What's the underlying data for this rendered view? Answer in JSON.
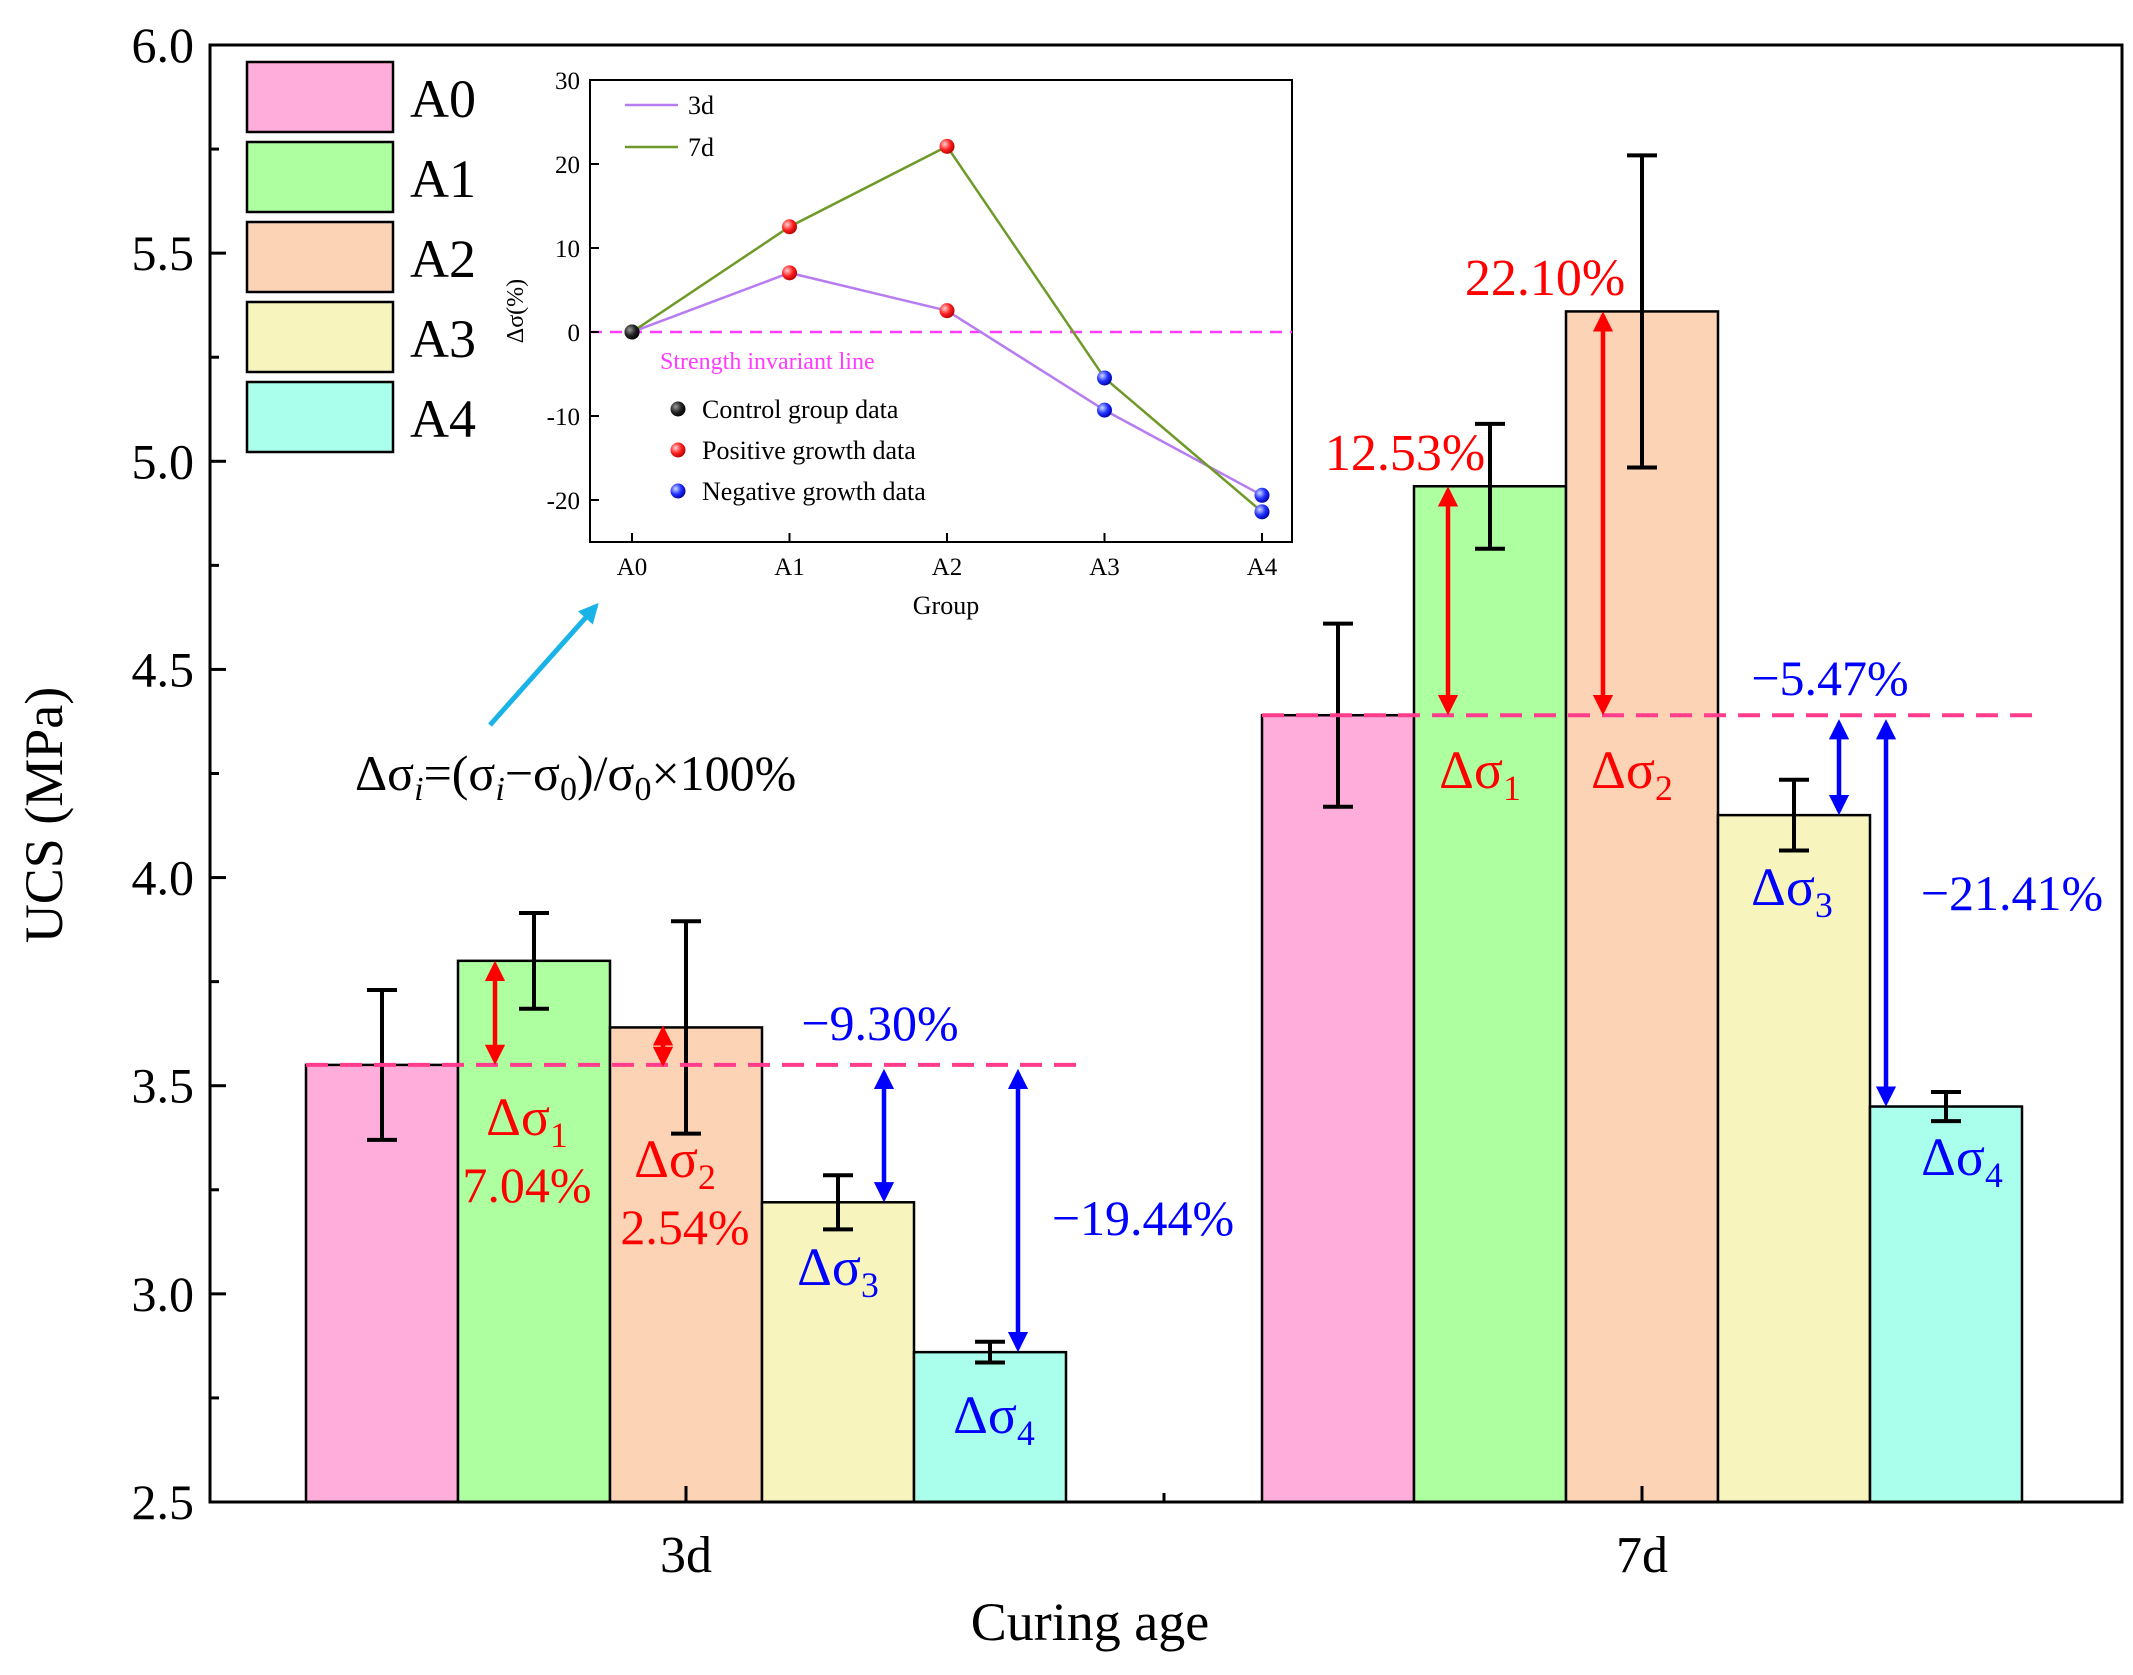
{
  "chart_data": [
    {
      "id": "main",
      "type": "bar",
      "xlabel": "Curing age",
      "ylabel": "UCS (MPa)",
      "ylim": [
        2.5,
        6.0
      ],
      "yticks": [
        "2.5",
        "3.0",
        "3.5",
        "4.0",
        "4.5",
        "5.0",
        "5.5",
        "6.0"
      ],
      "categories": [
        "3d",
        "7d"
      ],
      "series": [
        {
          "name": "A0",
          "color": "#ffaedc",
          "values": [
            3.55,
            4.39
          ],
          "errors": [
            0.18,
            0.22
          ]
        },
        {
          "name": "A1",
          "color": "#aeffa0",
          "values": [
            3.8,
            4.94
          ],
          "errors": [
            0.115,
            0.15
          ]
        },
        {
          "name": "A2",
          "color": "#fcd3b4",
          "values": [
            3.64,
            5.36
          ],
          "errors": [
            0.255,
            0.375
          ]
        },
        {
          "name": "A3",
          "color": "#f8f4be",
          "values": [
            3.22,
            4.15
          ],
          "errors": [
            0.065,
            0.085
          ]
        },
        {
          "name": "A4",
          "color": "#a9feec",
          "values": [
            2.86,
            3.45
          ],
          "errors": [
            0.025,
            0.035
          ]
        }
      ],
      "legend_position": "top-left",
      "annotations": {
        "formula": "Δσ_i=(σ_i−σ_0)/σ_0×100%",
        "3d": [
          {
            "label": "Δσ",
            "sub": "1",
            "pct": "7.04%",
            "color": "#ff0000"
          },
          {
            "label": "Δσ",
            "sub": "2",
            "pct": "2.54%",
            "color": "#ff0000"
          },
          {
            "label": "Δσ",
            "sub": "3",
            "pct": "−9.30%",
            "color": "#0000ff"
          },
          {
            "label": "Δσ",
            "sub": "4",
            "pct": "−19.44%",
            "color": "#0000ff"
          }
        ],
        "7d": [
          {
            "label": "Δσ",
            "sub": "1",
            "pct": "12.53%",
            "color": "#ff0000"
          },
          {
            "label": "Δσ",
            "sub": "2",
            "pct": "22.10%",
            "color": "#ff0000"
          },
          {
            "label": "Δσ",
            "sub": "3",
            "pct": "−5.47%",
            "color": "#0000ff"
          },
          {
            "label": "Δσ",
            "sub": "4",
            "pct": "−21.41%",
            "color": "#0000ff"
          }
        ]
      }
    },
    {
      "id": "inset",
      "type": "line",
      "xlabel": "Group",
      "ylabel": "Δσ(%)",
      "categories": [
        "A0",
        "A1",
        "A2",
        "A3",
        "A4"
      ],
      "ylim": [
        -25,
        30
      ],
      "yticks": [
        -20,
        -10,
        0,
        10,
        20,
        30
      ],
      "series": [
        {
          "name": "3d",
          "color": "#b77cf0",
          "values": [
            0,
            7.04,
            2.54,
            -9.3,
            -19.44
          ]
        },
        {
          "name": "7d",
          "color": "#6f9a2a",
          "values": [
            0,
            12.53,
            22.1,
            -5.47,
            -21.41
          ]
        }
      ],
      "reference_line": {
        "value": 0,
        "label": "Strength invariant line",
        "color": "#ff3bff"
      },
      "marker_legend": [
        {
          "label": "Control group data",
          "color": "#000000"
        },
        {
          "label": "Positive growth data",
          "color": "#ff0000"
        },
        {
          "label": "Negative growth data",
          "color": "#0000ff"
        }
      ]
    }
  ]
}
